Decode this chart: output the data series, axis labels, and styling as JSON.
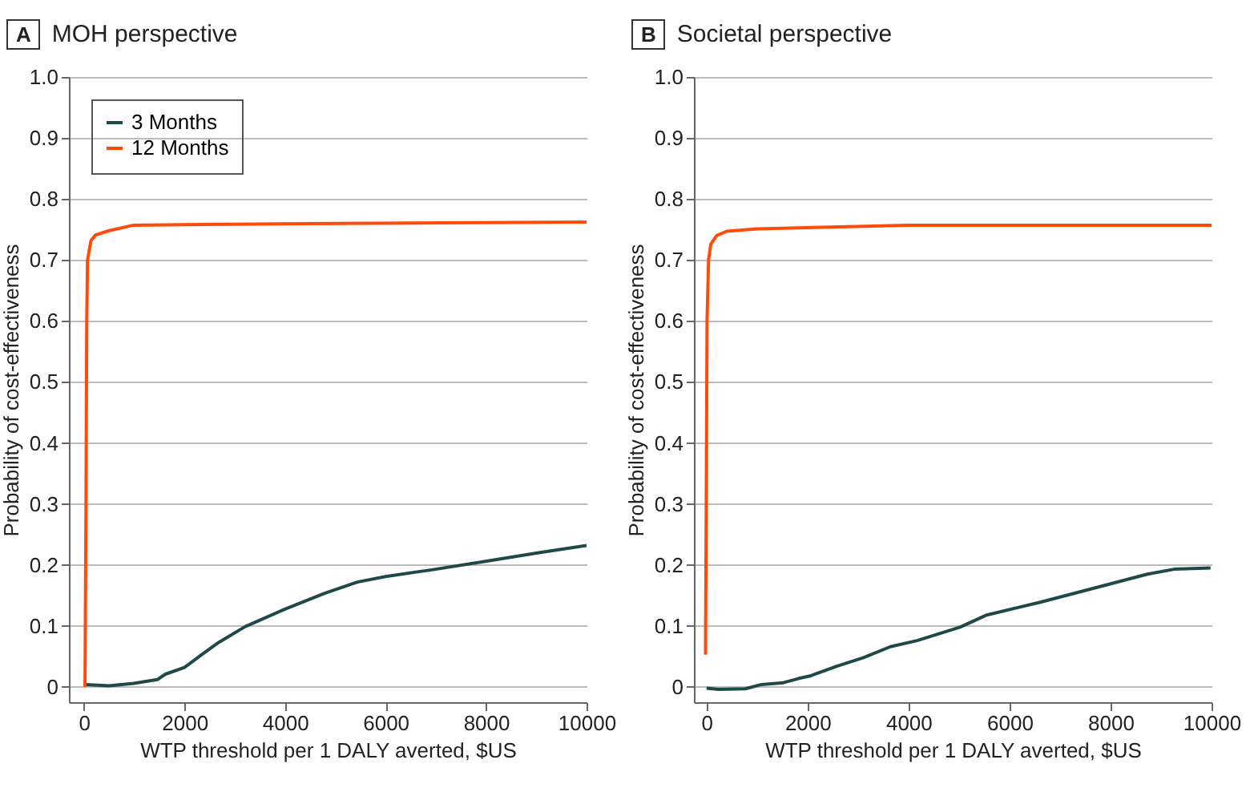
{
  "chart_data": [
    {
      "type": "line",
      "title": "MOH perspective",
      "annotations": [
        "A"
      ],
      "xlabel": "WTP threshold per 1 DALY averted, $US",
      "ylabel": "Probability of cost-effectiveness",
      "xlim": [
        -300,
        10000
      ],
      "xticks": [
        0,
        2000,
        4000,
        6000,
        8000,
        10000
      ],
      "ylim": [
        -0.025,
        1.0
      ],
      "yticks": [
        0,
        0.1,
        0.2,
        0.3,
        0.4,
        0.5,
        0.6,
        0.7,
        0.8,
        0.9,
        {
          "value": 1,
          "label": "1.0"
        }
      ],
      "grid": "y",
      "legend": "top left",
      "series": [
        {
          "name": "3 Months",
          "color": "#1f4848",
          "x": [
            30,
            500,
            990,
            1460,
            1620,
            2000,
            2360,
            2680,
            3210,
            4010,
            4800,
            5440,
            6000,
            6920,
            7990,
            9050,
            10000
          ],
          "values": [
            0.004,
            0.002,
            0.006,
            0.012,
            0.021,
            0.032,
            0.054,
            0.073,
            0.099,
            0.128,
            0.154,
            0.172,
            0.181,
            0.192,
            0.206,
            0.22,
            0.232
          ]
        },
        {
          "name": "12 Months",
          "color": "#ff4a0a",
          "x": [
            20,
            40,
            55,
            70,
            140,
            230,
            500,
            990,
            2000,
            5000,
            10000
          ],
          "values": [
            0,
            0.3,
            0.6,
            0.7,
            0.732,
            0.741,
            0.748,
            0.757,
            0.758,
            0.76,
            0.762
          ]
        }
      ]
    },
    {
      "type": "line",
      "title": "Societal perspective",
      "annotations": [
        "B"
      ],
      "xlabel": "WTP threshold per 1 DALY averted, $US",
      "ylabel": "Probability of cost-effectiveness",
      "xlim": [
        -250,
        10000
      ],
      "xticks": [
        0,
        2000,
        4000,
        6000,
        8000,
        10000
      ],
      "ylim": [
        -0.025,
        1.0
      ],
      "yticks": [
        0,
        0.1,
        0.2,
        0.3,
        0.4,
        0.5,
        0.6,
        0.7,
        0.8,
        0.9,
        {
          "value": 1,
          "label": "1.0"
        }
      ],
      "grid": "y",
      "series": [
        {
          "color": "#1f4848",
          "x": [
            0,
            240,
            770,
            1090,
            1520,
            1830,
            2050,
            2580,
            3110,
            3640,
            4170,
            5020,
            5550,
            6610,
            7670,
            8730,
            9260,
            9980
          ],
          "values": [
            -0.002,
            -0.004,
            -0.003,
            0.004,
            0.007,
            0.014,
            0.018,
            0.034,
            0.048,
            0.066,
            0.076,
            0.098,
            0.118,
            0.139,
            0.162,
            0.185,
            0.193,
            0.195
          ]
        },
        {
          "color": "#ff4a0a",
          "x": [
            -20,
            0,
            10,
            40,
            85,
            200,
            400,
            1000,
            2000,
            4000,
            10000
          ],
          "values": [
            0.053,
            0.4,
            0.6,
            0.7,
            0.726,
            0.74,
            0.747,
            0.751,
            0.753,
            0.757,
            0.757
          ]
        }
      ]
    }
  ]
}
